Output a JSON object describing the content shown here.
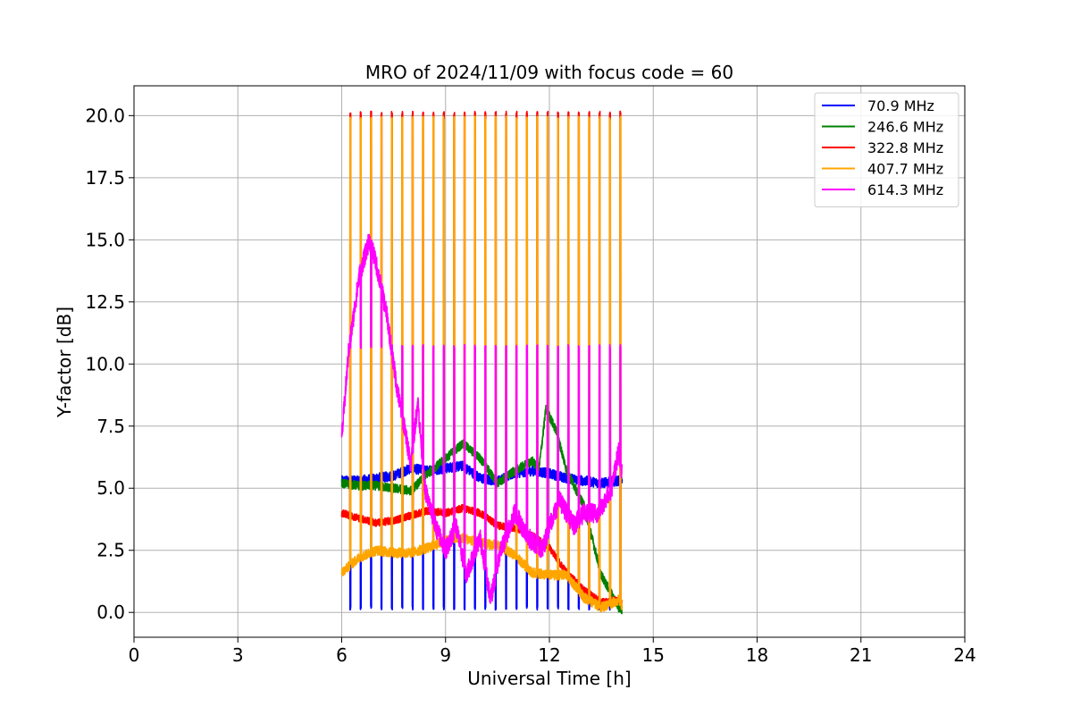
{
  "chart_data": {
    "type": "line",
    "title": "MRO of 2024/11/09 with focus code = 60",
    "xlabel": "Universal Time [h]",
    "ylabel": "Y-factor [dB]",
    "xlim": [
      0,
      24
    ],
    "ylim": [
      -1.0,
      21.2
    ],
    "xticks": [
      0,
      3,
      6,
      9,
      12,
      15,
      18,
      21,
      24
    ],
    "xtick_labels": [
      "0",
      "3",
      "6",
      "9",
      "12",
      "15",
      "18",
      "21",
      "24"
    ],
    "yticks": [
      0.0,
      2.5,
      5.0,
      7.5,
      10.0,
      12.5,
      15.0,
      17.5,
      20.0
    ],
    "ytick_labels": [
      "0.0",
      "2.5",
      "5.0",
      "7.5",
      "10.0",
      "12.5",
      "15.0",
      "17.5",
      "20.0"
    ],
    "grid": true,
    "legend_position": "top-right",
    "calibration": {
      "start": 6.25,
      "interval": 0.3,
      "count": 27,
      "end": 14.05
    },
    "series": [
      {
        "name": " 70.9 MHz",
        "color": "#0000ff",
        "base": [
          [
            6.0,
            5.3
          ],
          [
            6.5,
            5.3
          ],
          [
            7.0,
            5.4
          ],
          [
            7.5,
            5.5
          ],
          [
            8.0,
            5.8
          ],
          [
            8.5,
            5.7
          ],
          [
            9.0,
            5.8
          ],
          [
            9.5,
            5.9
          ],
          [
            10.0,
            5.4
          ],
          [
            10.5,
            5.3
          ],
          [
            11.0,
            5.6
          ],
          [
            11.5,
            5.7
          ],
          [
            12.0,
            5.6
          ],
          [
            12.5,
            5.4
          ],
          [
            13.0,
            5.3
          ],
          [
            13.5,
            5.2
          ],
          [
            14.0,
            5.3
          ],
          [
            14.1,
            5.3
          ]
        ],
        "noise": 0.2,
        "pulse_low": 0.1
      },
      {
        "name": "246.6 MHz",
        "color": "#008000",
        "base": [
          [
            6.0,
            5.2
          ],
          [
            6.5,
            5.1
          ],
          [
            7.0,
            5.1
          ],
          [
            7.5,
            5.0
          ],
          [
            8.0,
            4.9
          ],
          [
            8.5,
            5.6
          ],
          [
            9.0,
            6.2
          ],
          [
            9.5,
            6.8
          ],
          [
            10.0,
            6.2
          ],
          [
            10.5,
            5.2
          ],
          [
            11.0,
            5.7
          ],
          [
            11.5,
            6.1
          ],
          [
            11.7,
            5.8
          ],
          [
            11.9,
            8.2
          ],
          [
            12.2,
            7.3
          ],
          [
            12.5,
            5.7
          ],
          [
            13.0,
            4.3
          ],
          [
            13.5,
            1.5
          ],
          [
            14.0,
            0.2
          ],
          [
            14.1,
            0.1
          ]
        ],
        "noise": 0.18,
        "pulse_low": null
      },
      {
        "name": "322.8 MHz",
        "color": "#ff0000",
        "base": [
          [
            6.0,
            4.0
          ],
          [
            6.5,
            3.8
          ],
          [
            7.0,
            3.6
          ],
          [
            7.5,
            3.7
          ],
          [
            8.0,
            3.9
          ],
          [
            8.5,
            4.1
          ],
          [
            9.0,
            4.0
          ],
          [
            9.5,
            4.2
          ],
          [
            10.0,
            4.0
          ],
          [
            10.5,
            3.5
          ],
          [
            11.0,
            3.4
          ],
          [
            11.5,
            3.1
          ],
          [
            12.0,
            2.6
          ],
          [
            12.5,
            1.6
          ],
          [
            13.0,
            0.9
          ],
          [
            13.5,
            0.4
          ],
          [
            14.0,
            0.5
          ],
          [
            14.1,
            0.4
          ]
        ],
        "noise": 0.15,
        "pulse_high": 20.1
      },
      {
        "name": "407.7 MHz",
        "color": "#ffa500",
        "base": [
          [
            6.0,
            1.6
          ],
          [
            6.5,
            2.2
          ],
          [
            7.0,
            2.5
          ],
          [
            7.5,
            2.4
          ],
          [
            8.0,
            2.4
          ],
          [
            8.5,
            2.6
          ],
          [
            9.0,
            2.9
          ],
          [
            9.5,
            3.0
          ],
          [
            10.0,
            2.8
          ],
          [
            10.5,
            2.7
          ],
          [
            11.0,
            2.3
          ],
          [
            11.5,
            1.6
          ],
          [
            12.0,
            1.5
          ],
          [
            12.5,
            1.5
          ],
          [
            13.0,
            0.6
          ],
          [
            13.5,
            0.2
          ],
          [
            14.0,
            0.5
          ],
          [
            14.1,
            0.3
          ]
        ],
        "noise": 0.2,
        "pulse_high": 19.9
      },
      {
        "name": "614.3 MHz",
        "color": "#ff00ff",
        "base": [
          [
            6.0,
            7.0
          ],
          [
            6.2,
            10.5
          ],
          [
            6.5,
            13.5
          ],
          [
            6.8,
            15.0
          ],
          [
            7.0,
            14.0
          ],
          [
            7.3,
            12.0
          ],
          [
            7.6,
            9.0
          ],
          [
            8.0,
            6.0
          ],
          [
            8.2,
            8.5
          ],
          [
            8.4,
            5.0
          ],
          [
            8.7,
            3.5
          ],
          [
            9.0,
            2.5
          ],
          [
            9.3,
            3.5
          ],
          [
            9.6,
            1.5
          ],
          [
            10.0,
            3.0
          ],
          [
            10.3,
            0.5
          ],
          [
            10.6,
            2.5
          ],
          [
            11.0,
            4.0
          ],
          [
            11.4,
            3.0
          ],
          [
            11.8,
            2.5
          ],
          [
            12.0,
            3.5
          ],
          [
            12.3,
            4.5
          ],
          [
            12.7,
            3.5
          ],
          [
            13.0,
            4.0
          ],
          [
            13.4,
            4.0
          ],
          [
            13.8,
            5.0
          ],
          [
            14.0,
            6.5
          ],
          [
            14.1,
            5.5
          ]
        ],
        "noise": 0.4,
        "pulse_high": 10.7
      }
    ]
  }
}
